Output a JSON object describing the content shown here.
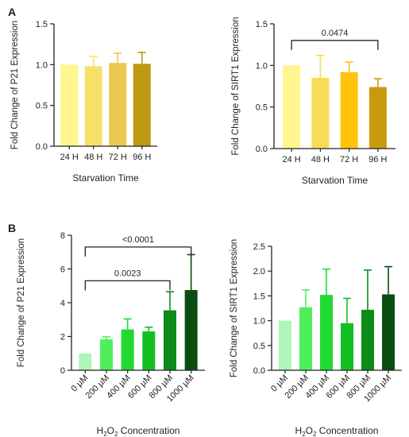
{
  "panel_labels": [
    "A",
    "B"
  ],
  "chart_data": [
    {
      "type": "bar",
      "panel": "A",
      "categories": [
        "24 H",
        "48 H",
        "72 H",
        "96 H"
      ],
      "values": [
        1.0,
        0.98,
        1.02,
        1.01
      ],
      "errors": [
        0.0,
        0.12,
        0.12,
        0.14
      ],
      "colors": [
        "#FFF68F",
        "#F7E06A",
        "#EDC850",
        "#BC9A12"
      ],
      "ylabel": "Fold Change of P21 Expression",
      "xlabel": "Starvation Time",
      "ylim": [
        0,
        1.5
      ],
      "yticks": [
        "0.0",
        "0.5",
        "1.0",
        "1.5"
      ],
      "significance": []
    },
    {
      "type": "bar",
      "panel": "A",
      "categories": [
        "24 H",
        "48 H",
        "72 H",
        "96 H"
      ],
      "values": [
        1.0,
        0.85,
        0.92,
        0.74
      ],
      "errors": [
        0.0,
        0.27,
        0.12,
        0.1
      ],
      "colors": [
        "#FFF68F",
        "#F9DC55",
        "#FFC40C",
        "#C89A10"
      ],
      "ylabel": "Fold Change of SIRT1 Expression",
      "xlabel": "Starvation Time",
      "ylim": [
        0,
        1.5
      ],
      "yticks": [
        "0.0",
        "0.5",
        "1.0",
        "1.5"
      ],
      "significance": [
        {
          "from": 0,
          "to": 3,
          "y": 1.3,
          "label": "0.0474"
        }
      ]
    },
    {
      "type": "bar",
      "panel": "B",
      "categories": [
        "0 µM",
        "200 µM",
        "400 µM",
        "600 µM",
        "800 µM",
        "1000 µM"
      ],
      "values": [
        1.0,
        1.83,
        2.42,
        2.3,
        3.55,
        4.75
      ],
      "errors": [
        0.0,
        0.15,
        0.62,
        0.25,
        1.1,
        2.1
      ],
      "colors": [
        "#B0F5B8",
        "#4FEF5A",
        "#22D933",
        "#14BF24",
        "#0E8A18",
        "#0A4D12"
      ],
      "ylabel": "Fold Change of P21 Expression",
      "xlabel_parts": [
        "H",
        "2",
        "O",
        "2",
        " Concentration"
      ],
      "ylim": [
        0,
        8
      ],
      "yticks": [
        "0",
        "2",
        "4",
        "6",
        "8"
      ],
      "significance": [
        {
          "from": 0,
          "to": 4,
          "y": 5.3,
          "label": "0.0023"
        },
        {
          "from": 0,
          "to": 5,
          "y": 7.3,
          "label": "<0.0001"
        }
      ]
    },
    {
      "type": "bar",
      "panel": "B",
      "categories": [
        "0 µM",
        "200 µM",
        "400 µM",
        "600 µM",
        "800 µM",
        "1000 µM"
      ],
      "values": [
        1.0,
        1.27,
        1.52,
        0.95,
        1.22,
        1.53
      ],
      "errors": [
        0.0,
        0.35,
        0.52,
        0.5,
        0.8,
        0.56
      ],
      "colors": [
        "#B0F5B8",
        "#4FEF5A",
        "#22D933",
        "#14BF24",
        "#0E8A18",
        "#0A4D12"
      ],
      "ylabel": "Fold Change of SIRT1 Expression",
      "xlabel_parts": [
        "H",
        "2",
        "O",
        "2",
        " Concentration"
      ],
      "ylim": [
        0,
        2.5
      ],
      "yticks": [
        "0.0",
        "0.5",
        "1.0",
        "1.5",
        "2.0",
        "2.5"
      ],
      "significance": []
    }
  ]
}
